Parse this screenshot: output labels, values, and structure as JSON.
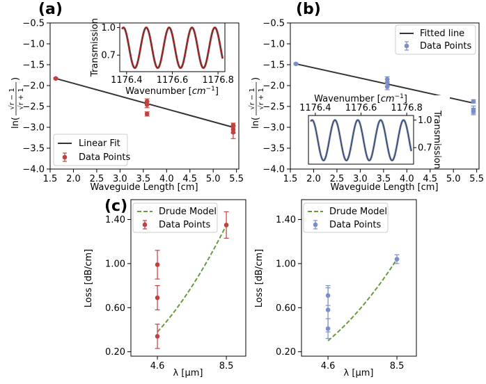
{
  "panel_labels": [
    "(a)",
    "(b)",
    "(c)"
  ],
  "colors": {
    "red": "#c0413f",
    "blue": "#7b8ec8",
    "fit": "#333333",
    "drude": "#6a9a3a",
    "axis": "#000000"
  },
  "chart_data": [
    {
      "id": "a",
      "type": "scatter",
      "xlabel": "Waveguide Length [cm]",
      "ylabel_text": "ln(",
      "ylabel_sqrt_r_minus_1": "√r − 1",
      "ylabel_sqrt_r_plus_1": "√r + 1",
      "ylabel_close": ")",
      "xlim": [
        1.5,
        5.55
      ],
      "ylim": [
        -4.0,
        -0.5
      ],
      "xticks": [
        1.5,
        2.0,
        2.5,
        3.0,
        3.5,
        4.0,
        4.5,
        5.0,
        5.5
      ],
      "xtick_labels": [
        "1.5",
        "2.0",
        "2.5",
        "3.0",
        "3.5",
        "4.0",
        "4.5",
        "5.0",
        "5.5"
      ],
      "yticks": [
        -0.5,
        -1.0,
        -1.5,
        -2.0,
        -2.5,
        -3.0,
        -3.5,
        -4.0
      ],
      "ytick_labels": [
        "−0.5",
        "−1.0",
        "−1.5",
        "−2.0",
        "−2.5",
        "−3.0",
        "−3.5",
        "−4.0"
      ],
      "points": [
        {
          "x": 1.62,
          "y": -1.83,
          "err": 0.02
        },
        {
          "x": 3.58,
          "y": -2.38,
          "err": 0.06
        },
        {
          "x": 3.58,
          "y": -2.46,
          "err": 0.07
        },
        {
          "x": 3.58,
          "y": -2.68,
          "err": 0.05
        },
        {
          "x": 5.43,
          "y": -2.95,
          "err": 0.05
        },
        {
          "x": 5.43,
          "y": -3.05,
          "err": 0.09
        },
        {
          "x": 5.43,
          "y": -3.12,
          "err": 0.15
        }
      ],
      "fit": {
        "x1": 1.62,
        "y1": -1.83,
        "x2": 5.43,
        "y2": -3.0
      },
      "legend": {
        "fit": "Linear Fit",
        "points": "Data Points",
        "placement": "lower-left"
      },
      "inset": {
        "xlabel_text": "Wavenumber [",
        "xlabel_unit": "cm",
        "xlabel_exp": "−1",
        "xlabel_close": "]",
        "ylabel": "Transmission",
        "xlim": [
          1176.37,
          1176.83
        ],
        "ylim": [
          0.52,
          1.05
        ],
        "xticks": [
          1176.4,
          1176.6,
          1176.8
        ],
        "xtick_labels": [
          "1176.4",
          "1176.6",
          "1176.8"
        ],
        "yticks": [
          0.7,
          1.0
        ],
        "ytick_labels": [
          "0.7",
          "1.0"
        ],
        "period": 0.1,
        "peak_at": 1176.486,
        "min": 0.56,
        "max": 1.0,
        "x_start": 1176.38,
        "x_end": 1176.82
      }
    },
    {
      "id": "b",
      "type": "scatter",
      "xlabel": "Waveguide Length [cm]",
      "ylabel_text": "ln(",
      "ylabel_sqrt_r_minus_1": "√r − 1",
      "ylabel_sqrt_r_plus_1": "√r + 1",
      "ylabel_close": ")",
      "xlim": [
        1.5,
        5.55
      ],
      "ylim": [
        -4.0,
        -0.5
      ],
      "xticks": [
        1.5,
        2.0,
        2.5,
        3.0,
        3.5,
        4.0,
        4.5,
        5.0,
        5.5
      ],
      "xtick_labels": [
        "1.5",
        "2.0",
        "2.5",
        "3.0",
        "3.5",
        "4.0",
        "4.5",
        "5.0",
        "5.5"
      ],
      "yticks": [
        -0.5,
        -1.0,
        -1.5,
        -2.0,
        -2.5,
        -3.0,
        -3.5,
        -4.0
      ],
      "ytick_labels": [
        "−0.5",
        "−1.0",
        "−1.5",
        "−2.0",
        "−2.5",
        "−3.0",
        "−3.5",
        "−4.0"
      ],
      "points": [
        {
          "x": 1.62,
          "y": -1.48,
          "err": 0.02
        },
        {
          "x": 3.58,
          "y": -1.85,
          "err": 0.06
        },
        {
          "x": 3.58,
          "y": -1.93,
          "err": 0.08
        },
        {
          "x": 3.58,
          "y": -2.03,
          "err": 0.07
        },
        {
          "x": 5.43,
          "y": -2.38,
          "err": 0.04
        },
        {
          "x": 5.43,
          "y": -2.58,
          "err": 0.09
        },
        {
          "x": 5.43,
          "y": -2.62,
          "err": 0.08
        }
      ],
      "fit": {
        "x1": 1.62,
        "y1": -1.48,
        "x2": 5.43,
        "y2": -2.42
      },
      "legend": {
        "fit": "Fitted line",
        "points": "Data Points",
        "placement": "upper-right"
      },
      "inset": {
        "xlabel_text": "Wavenumber [",
        "xlabel_unit": "cm",
        "xlabel_exp": "−1",
        "xlabel_close": "]",
        "ylabel": "Transmission",
        "xlim": [
          1176.37,
          1176.83
        ],
        "ylim": [
          0.52,
          1.05
        ],
        "xticks": [
          1176.4,
          1176.6,
          1176.8
        ],
        "xtick_labels": [
          "1176.4",
          "1176.6",
          "1176.8"
        ],
        "yticks": [
          0.7,
          1.0
        ],
        "ytick_labels": [
          "0.7",
          "1.0"
        ],
        "period": 0.1,
        "peak_at": 1176.486,
        "min": 0.56,
        "max": 1.0,
        "x_start": 1176.38,
        "x_end": 1176.82
      }
    },
    {
      "id": "c1",
      "type": "scatter",
      "xlabel": "λ [μm]",
      "ylabel": "Loss [dB/cm]",
      "xlim": [
        3.1,
        9.6
      ],
      "ylim": [
        0.16,
        1.58
      ],
      "xticks": [
        4.6,
        8.5
      ],
      "xtick_labels": [
        "4.6",
        "8.5"
      ],
      "yticks": [
        0.2,
        0.6,
        1.0,
        1.4
      ],
      "ytick_labels": [
        "0.20",
        "0.60",
        "1.00",
        "1.40"
      ],
      "points": [
        {
          "x": 4.6,
          "y": 0.34,
          "err": 0.11
        },
        {
          "x": 4.6,
          "y": 0.69,
          "err": 0.11
        },
        {
          "x": 4.6,
          "y": 0.99,
          "err": 0.13
        },
        {
          "x": 8.5,
          "y": 1.35,
          "err": 0.12
        }
      ],
      "model": {
        "x_start": 4.6,
        "x_end": 8.5,
        "y_start": 0.38,
        "y_end": 1.35,
        "exponent": 2
      },
      "legend": {
        "model": "Drude Model",
        "points": "Data Points",
        "placement": "upper-left"
      }
    },
    {
      "id": "c2",
      "type": "scatter",
      "xlabel": "λ [μm]",
      "ylabel": "Loss [dB/cm]",
      "xlim": [
        3.1,
        9.6
      ],
      "ylim": [
        0.16,
        1.58
      ],
      "xticks": [
        4.6,
        8.5
      ],
      "xtick_labels": [
        "4.6",
        "8.5"
      ],
      "yticks": [
        0.2,
        0.6,
        1.0,
        1.4
      ],
      "ytick_labels": [
        "0.20",
        "0.60",
        "1.00",
        "1.40"
      ],
      "points": [
        {
          "x": 4.6,
          "y": 0.41,
          "err": 0.09
        },
        {
          "x": 4.6,
          "y": 0.58,
          "err": 0.2
        },
        {
          "x": 4.6,
          "y": 0.71,
          "err": 0.09
        },
        {
          "x": 8.5,
          "y": 1.04,
          "err": 0.04
        }
      ],
      "model": {
        "x_start": 4.6,
        "x_end": 8.5,
        "y_start": 0.3,
        "y_end": 1.04,
        "exponent": 2
      },
      "legend": {
        "model": "Drude Model",
        "points": "Data Points",
        "placement": "upper-left"
      }
    }
  ]
}
